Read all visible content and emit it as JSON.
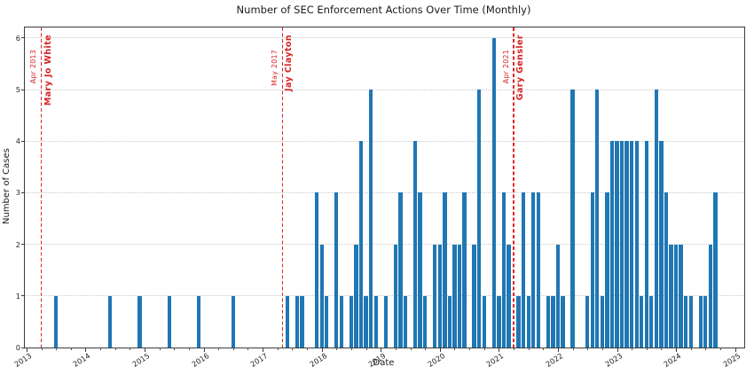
{
  "chart_data": {
    "type": "bar",
    "title": "Number of SEC Enforcement Actions Over Time (Monthly)",
    "xlabel": "Date",
    "ylabel": "Number of Cases",
    "x_start": "2013-01",
    "x_end": "2025-02",
    "ylim": [
      0,
      6.2
    ],
    "grid": "horizontal-dotted",
    "legend": "none",
    "bar_color": "#1f77b4",
    "grid_color": "#c9c9c9",
    "annotation_color": "#d62222",
    "yticks": [
      0,
      1,
      2,
      3,
      4,
      5,
      6
    ],
    "xticks_years": [
      2013,
      2014,
      2015,
      2016,
      2017,
      2018,
      2019,
      2020,
      2021,
      2022,
      2023,
      2024,
      2025
    ],
    "points": [
      [
        "2013-07",
        1
      ],
      [
        "2014-06",
        1
      ],
      [
        "2014-12",
        1
      ],
      [
        "2015-06",
        1
      ],
      [
        "2015-12",
        1
      ],
      [
        "2016-07",
        1
      ],
      [
        "2017-06",
        1
      ],
      [
        "2017-08",
        1
      ],
      [
        "2017-09",
        1
      ],
      [
        "2017-12",
        3
      ],
      [
        "2018-01",
        2
      ],
      [
        "2018-02",
        1
      ],
      [
        "2018-04",
        3
      ],
      [
        "2018-05",
        1
      ],
      [
        "2018-07",
        1
      ],
      [
        "2018-08",
        2
      ],
      [
        "2018-09",
        4
      ],
      [
        "2018-10",
        1
      ],
      [
        "2018-11",
        5
      ],
      [
        "2018-12",
        1
      ],
      [
        "2019-02",
        1
      ],
      [
        "2019-04",
        2
      ],
      [
        "2019-05",
        3
      ],
      [
        "2019-06",
        1
      ],
      [
        "2019-08",
        4
      ],
      [
        "2019-09",
        3
      ],
      [
        "2019-10",
        1
      ],
      [
        "2019-12",
        2
      ],
      [
        "2020-01",
        2
      ],
      [
        "2020-02",
        3
      ],
      [
        "2020-03",
        1
      ],
      [
        "2020-04",
        2
      ],
      [
        "2020-05",
        2
      ],
      [
        "2020-06",
        3
      ],
      [
        "2020-08",
        2
      ],
      [
        "2020-09",
        5
      ],
      [
        "2020-10",
        1
      ],
      [
        "2020-12",
        6
      ],
      [
        "2021-01",
        1
      ],
      [
        "2021-02",
        3
      ],
      [
        "2021-03",
        2
      ],
      [
        "2021-05",
        1
      ],
      [
        "2021-06",
        3
      ],
      [
        "2021-07",
        1
      ],
      [
        "2021-08",
        3
      ],
      [
        "2021-09",
        3
      ],
      [
        "2021-11",
        1
      ],
      [
        "2021-12",
        1
      ],
      [
        "2022-01",
        2
      ],
      [
        "2022-02",
        1
      ],
      [
        "2022-04",
        5
      ],
      [
        "2022-07",
        1
      ],
      [
        "2022-08",
        3
      ],
      [
        "2022-09",
        5
      ],
      [
        "2022-10",
        1
      ],
      [
        "2022-11",
        3
      ],
      [
        "2022-12",
        4
      ],
      [
        "2023-01",
        4
      ],
      [
        "2023-02",
        4
      ],
      [
        "2023-03",
        4
      ],
      [
        "2023-04",
        4
      ],
      [
        "2023-05",
        4
      ],
      [
        "2023-06",
        1
      ],
      [
        "2023-07",
        4
      ],
      [
        "2023-08",
        1
      ],
      [
        "2023-09",
        5
      ],
      [
        "2023-10",
        4
      ],
      [
        "2023-11",
        3
      ],
      [
        "2023-12",
        2
      ],
      [
        "2024-01",
        2
      ],
      [
        "2024-02",
        2
      ],
      [
        "2024-03",
        1
      ],
      [
        "2024-04",
        1
      ],
      [
        "2024-06",
        1
      ],
      [
        "2024-07",
        1
      ],
      [
        "2024-08",
        2
      ],
      [
        "2024-09",
        3
      ]
    ],
    "annotations": [
      {
        "x": "2013-04",
        "date_label": "Apr 2013",
        "name": "Mary Jo White",
        "style": "dashed-vertical"
      },
      {
        "x": "2017-05",
        "date_label": "May 2017",
        "name": "Jay Clayton",
        "style": "dashed-vertical"
      },
      {
        "x": "2021-04",
        "date_label": "Apr 2021",
        "name": "Gary Gensler",
        "style": "dashed-vertical"
      }
    ]
  }
}
